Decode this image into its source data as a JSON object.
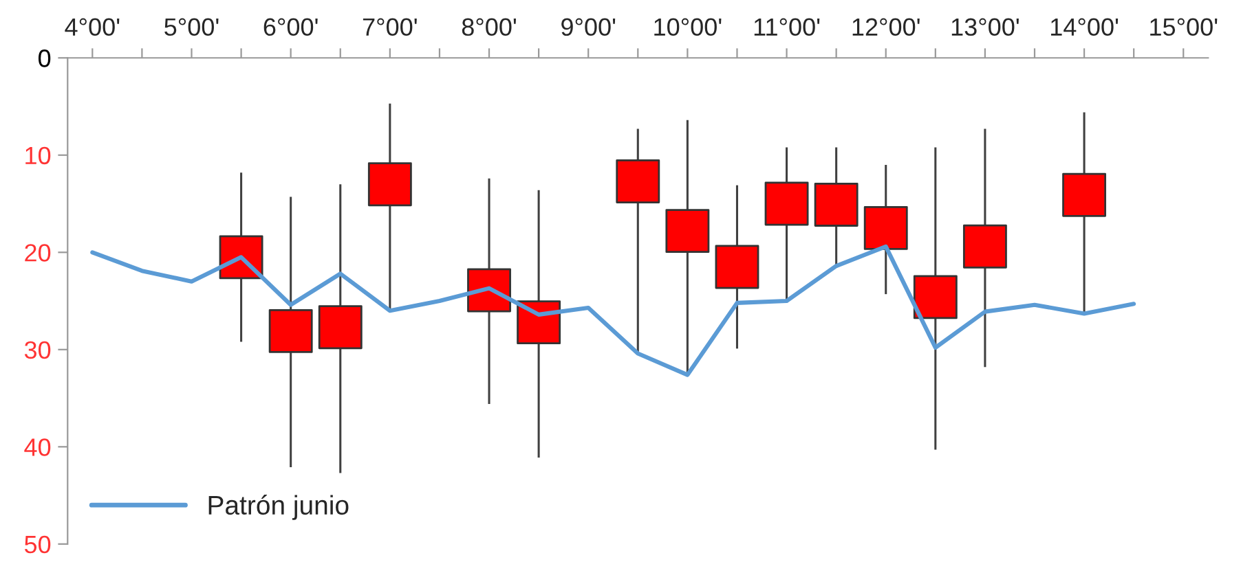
{
  "chart_data": {
    "type": "line",
    "categories": [
      "4°00'",
      null,
      "5°00'",
      null,
      "6°00'",
      null,
      "7°00'",
      null,
      "8°00'",
      null,
      "9°00'",
      null,
      "10°00'",
      null,
      "11°00'",
      null,
      "12°00'",
      null,
      "13°00'",
      null,
      "14°00'",
      null,
      "15°00'"
    ],
    "series": [
      {
        "name": "Patrón junio",
        "type": "line",
        "color": "#5b9bd5",
        "values": [
          20.0,
          21.9,
          23.0,
          20.5,
          25.4,
          22.2,
          26.0,
          25.0,
          23.7,
          26.4,
          25.7,
          30.4,
          32.6,
          25.2,
          25.0,
          21.4,
          19.4,
          29.8,
          26.1,
          25.4,
          26.3,
          25.3,
          null
        ]
      },
      {
        "type": "scatter",
        "color": "#ff0000",
        "marker": "square",
        "values": [
          null,
          null,
          null,
          20.5,
          28.1,
          27.7,
          13.0,
          null,
          23.9,
          27.2,
          null,
          12.7,
          17.8,
          21.5,
          15.0,
          15.1,
          17.5,
          24.6,
          19.4,
          null,
          14.1,
          null,
          null
        ],
        "errors": [
          null,
          null,
          null,
          [
            11.8,
            29.2
          ],
          [
            14.3,
            42.1
          ],
          [
            13.0,
            42.7
          ],
          [
            4.7,
            26.0
          ],
          null,
          [
            12.4,
            35.6
          ],
          [
            13.6,
            41.1
          ],
          null,
          [
            7.3,
            30.4
          ],
          [
            6.4,
            32.6
          ],
          [
            13.1,
            29.9
          ],
          [
            9.2,
            25.0
          ],
          [
            9.2,
            21.6
          ],
          [
            11.0,
            24.3
          ],
          [
            9.2,
            40.3
          ],
          [
            7.3,
            31.8
          ],
          null,
          [
            5.6,
            26.3
          ],
          null,
          null
        ]
      }
    ],
    "ylim": [
      50,
      0
    ],
    "yticks": [
      0,
      10,
      20,
      30,
      40,
      50
    ],
    "grid": false,
    "legend": "bottom left"
  }
}
